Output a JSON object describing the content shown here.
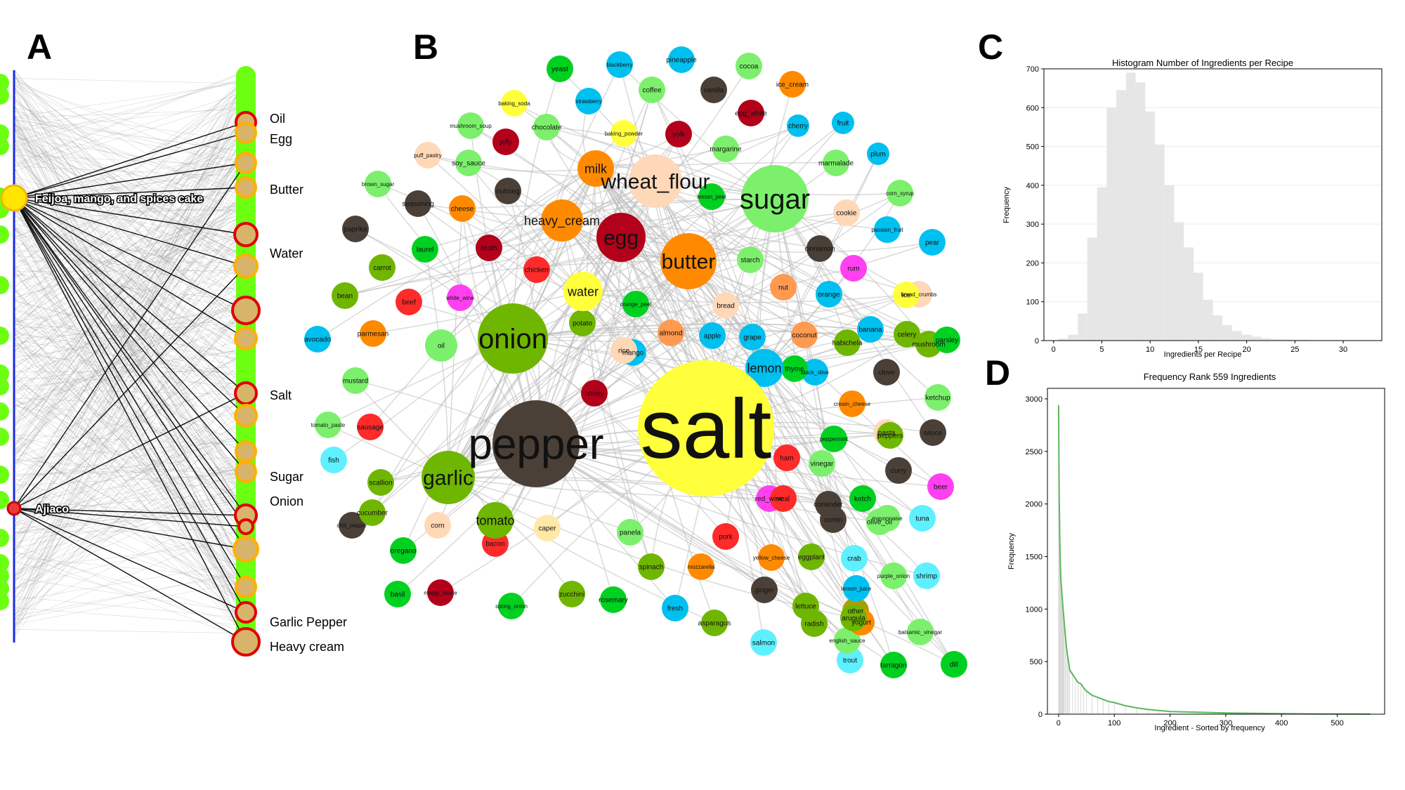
{
  "panels": {
    "a": {
      "letter": "A",
      "recipes": [
        {
          "label": "Feijoa, mango, and spices cake",
          "color": "#ffe600",
          "stroke": "#f2b705"
        },
        {
          "label": "Ajiaco",
          "color": "#e83a3a",
          "stroke": "#cc0000"
        }
      ],
      "ingredients": [
        {
          "label": "Oil"
        },
        {
          "label": "Egg"
        },
        {
          "label": "Butter"
        },
        {
          "label": "Water"
        },
        {
          "label": "Salt"
        },
        {
          "label": "Sugar"
        },
        {
          "label": "Onion"
        },
        {
          "label": "Garlic Pepper"
        },
        {
          "label": "Heavy cream"
        }
      ]
    },
    "b": {
      "letter": "B",
      "nodes": [
        {
          "t": "salt",
          "c": "#ffff3b"
        },
        {
          "t": "pepper",
          "c": "#4a4037"
        },
        {
          "t": "onion",
          "c": "#6fb600"
        },
        {
          "t": "sugar",
          "c": "#7cf06c"
        },
        {
          "t": "garlic",
          "c": "#6fb600"
        },
        {
          "t": "butter",
          "c": "#ff8a00"
        },
        {
          "t": "egg",
          "c": "#b3001b"
        },
        {
          "t": "wheat_flour",
          "c": "#ffd8b8"
        },
        {
          "t": "heavy_cream",
          "c": "#ff8a00"
        },
        {
          "t": "milk",
          "c": "#ff8a00"
        },
        {
          "t": "water",
          "c": "#ffff3b"
        },
        {
          "t": "lemon",
          "c": "#00c0f0"
        },
        {
          "t": "oil",
          "c": "#7cf06c"
        },
        {
          "t": "tomato",
          "c": "#6fb600"
        },
        {
          "t": "yeast",
          "c": "#00d020"
        },
        {
          "t": "blackberry",
          "c": "#00c0f0"
        },
        {
          "t": "pineapple",
          "c": "#00c0f0"
        },
        {
          "t": "cocoa",
          "c": "#7cf06c"
        },
        {
          "t": "ice_cream",
          "c": "#ff8a00"
        },
        {
          "t": "baking_soda",
          "c": "#ffff3b"
        },
        {
          "t": "strawberry",
          "c": "#00c0f0"
        },
        {
          "t": "coffee",
          "c": "#7cf06c"
        },
        {
          "t": "vanilla",
          "c": "#4a4037"
        },
        {
          "t": "egg_white",
          "c": "#b3001b"
        },
        {
          "t": "mushroom_soup",
          "c": "#7cf06c"
        },
        {
          "t": "chocolate",
          "c": "#7cf06c"
        },
        {
          "t": "baking_powder",
          "c": "#ffff3b"
        },
        {
          "t": "yolk",
          "c": "#b3001b"
        },
        {
          "t": "cherry",
          "c": "#00c0f0"
        },
        {
          "t": "puff_pastry",
          "c": "#ffd8b8"
        },
        {
          "t": "jelly",
          "c": "#b3001b"
        },
        {
          "t": "fruit",
          "c": "#00c0f0"
        },
        {
          "t": "plum",
          "c": "#00c0f0"
        },
        {
          "t": "margarine",
          "c": "#7cf06c"
        },
        {
          "t": "soy_sauce",
          "c": "#7cf06c"
        },
        {
          "t": "marmalade",
          "c": "#7cf06c"
        },
        {
          "t": "brown_sugar",
          "c": "#7cf06c"
        },
        {
          "t": "nutmeg",
          "c": "#4a4037"
        },
        {
          "t": "lemon_peel",
          "c": "#00d020"
        },
        {
          "t": "corn_syrup",
          "c": "#7cf06c"
        },
        {
          "t": "seasoning",
          "c": "#4a4037"
        },
        {
          "t": "cheese",
          "c": "#ff8a00"
        },
        {
          "t": "cookie",
          "c": "#ffd8b8"
        },
        {
          "t": "paprika",
          "c": "#4a4037"
        },
        {
          "t": "passion_fruit",
          "c": "#00c0f0"
        },
        {
          "t": "pear",
          "c": "#00c0f0"
        },
        {
          "t": "laurel",
          "c": "#00d020"
        },
        {
          "t": "broth",
          "c": "#b3001b"
        },
        {
          "t": "cinnamon",
          "c": "#4a4037"
        },
        {
          "t": "carrot",
          "c": "#6fb600"
        },
        {
          "t": "chicken",
          "c": "#ff2a2a"
        },
        {
          "t": "starch",
          "c": "#7cf06c"
        },
        {
          "t": "rum",
          "c": "#ff40f0"
        },
        {
          "t": "bean",
          "c": "#6fb600"
        },
        {
          "t": "beef",
          "c": "#ff2a2a"
        },
        {
          "t": "white_wine",
          "c": "#ff40f0"
        },
        {
          "t": "nut",
          "c": "#ff9a50"
        },
        {
          "t": "orange",
          "c": "#00c0f0"
        },
        {
          "t": "ice",
          "c": "#ffff3b"
        },
        {
          "t": "orange_peel",
          "c": "#00d020"
        },
        {
          "t": "bread",
          "c": "#ffd8b8"
        },
        {
          "t": "bread_crumbs",
          "c": "#ffd8b8"
        },
        {
          "t": "banana",
          "c": "#00c0f0"
        },
        {
          "t": "celery",
          "c": "#6fb600"
        },
        {
          "t": "parsley",
          "c": "#00d020"
        },
        {
          "t": "parmesan",
          "c": "#ff8a00"
        },
        {
          "t": "potato",
          "c": "#6fb600"
        },
        {
          "t": "almond",
          "c": "#ff9a50"
        },
        {
          "t": "apple",
          "c": "#00c0f0"
        },
        {
          "t": "grape",
          "c": "#00c0f0"
        },
        {
          "t": "coconut",
          "c": "#ff9a50"
        },
        {
          "t": "habichela",
          "c": "#6fb600"
        },
        {
          "t": "mushroom",
          "c": "#6fb600"
        },
        {
          "t": "rice",
          "c": "#ffd8b8"
        },
        {
          "t": "avocado",
          "c": "#00c0f0"
        },
        {
          "t": "mango",
          "c": "#00c0f0"
        },
        {
          "t": "thyme",
          "c": "#00d020"
        },
        {
          "t": "black_olive",
          "c": "#00c0f0"
        },
        {
          "t": "clove",
          "c": "#4a4037"
        },
        {
          "t": "ketchup",
          "c": "#7cf06c"
        },
        {
          "t": "mustard",
          "c": "#7cf06c"
        },
        {
          "t": "honey",
          "c": "#b3001b"
        },
        {
          "t": "cream_cheese",
          "c": "#ff8a00"
        },
        {
          "t": "peppers",
          "c": "#6fb600"
        },
        {
          "t": "tomato_paste",
          "c": "#7cf06c"
        },
        {
          "t": "sausage",
          "c": "#ff2a2a"
        },
        {
          "t": "peppermint",
          "c": "#00d020"
        },
        {
          "t": "pasta",
          "c": "#ffd8b8"
        },
        {
          "t": "sauce",
          "c": "#4a4037"
        },
        {
          "t": "fish",
          "c": "#5ff0ff"
        },
        {
          "t": "ham",
          "c": "#ff2a2a"
        },
        {
          "t": "curry",
          "c": "#4a4037"
        },
        {
          "t": "scallion",
          "c": "#6fb600"
        },
        {
          "t": "vinegar",
          "c": "#7cf06c"
        },
        {
          "t": "veal",
          "c": "#ff2a2a"
        },
        {
          "t": "beer",
          "c": "#ff40f0"
        },
        {
          "t": "ketch",
          "c": "#00d020"
        },
        {
          "t": "cucumber",
          "c": "#6fb600"
        },
        {
          "t": "red_wine",
          "c": "#ff40f0"
        },
        {
          "t": "coriander",
          "c": "#4a4037"
        },
        {
          "t": "olive_oil",
          "c": "#7cf06c"
        },
        {
          "t": "chili_pepper",
          "c": "#4a4037"
        },
        {
          "t": "corn",
          "c": "#ffd8b8"
        },
        {
          "t": "caper",
          "c": "#ffe8a8"
        },
        {
          "t": "panela",
          "c": "#7cf06c"
        },
        {
          "t": "cumin",
          "c": "#4a4037"
        },
        {
          "t": "mayonnaise",
          "c": "#7cf06c"
        },
        {
          "t": "tuna",
          "c": "#5ff0ff"
        },
        {
          "t": "oregano",
          "c": "#00d020"
        },
        {
          "t": "bacon",
          "c": "#ff2a2a"
        },
        {
          "t": "pork",
          "c": "#ff2a2a"
        },
        {
          "t": "yellow_cheese",
          "c": "#ff8a00"
        },
        {
          "t": "eggplant",
          "c": "#6fb600"
        },
        {
          "t": "crab",
          "c": "#5ff0ff"
        },
        {
          "t": "purple_onion",
          "c": "#7cf06c"
        },
        {
          "t": "spinach",
          "c": "#6fb600"
        },
        {
          "t": "mozzarella",
          "c": "#ff8a00"
        },
        {
          "t": "basil",
          "c": "#00d020"
        },
        {
          "t": "maggi_sauce",
          "c": "#b3001b"
        },
        {
          "t": "ginger",
          "c": "#4a4037"
        },
        {
          "t": "lemon_juice",
          "c": "#00c0f0"
        },
        {
          "t": "shrimp",
          "c": "#5ff0ff"
        },
        {
          "t": "spring_onion",
          "c": "#00d020"
        },
        {
          "t": "zucchini",
          "c": "#6fb600"
        },
        {
          "t": "rosemary",
          "c": "#00d020"
        },
        {
          "t": "fresh",
          "c": "#00c0f0"
        },
        {
          "t": "arugula",
          "c": "#6fb600"
        },
        {
          "t": "lettuce",
          "c": "#6fb600"
        },
        {
          "t": "yogurt",
          "c": "#ff8a00"
        },
        {
          "t": "asparagus",
          "c": "#6fb600"
        },
        {
          "t": "english_sauce",
          "c": "#7cf06c"
        },
        {
          "t": "salmon",
          "c": "#5ff0ff"
        },
        {
          "t": "tarragon",
          "c": "#00d020"
        },
        {
          "t": "balsamic_vinegar",
          "c": "#7cf06c"
        },
        {
          "t": "dill",
          "c": "#00d020"
        },
        {
          "t": "other",
          "c": "#a8a000"
        },
        {
          "t": "radish",
          "c": "#6fb600"
        },
        {
          "t": "trout",
          "c": "#5ff0ff"
        }
      ]
    },
    "c": {
      "letter": "C",
      "chart_data": {
        "type": "bar",
        "title": "Histogram Number of Ingredients per Recipe",
        "xlabel": "Ingredients per Recipe",
        "ylabel": "Frequency",
        "xlim": [
          -1,
          34
        ],
        "ylim": [
          0,
          700
        ],
        "xticks": [
          0,
          5,
          10,
          15,
          20,
          25,
          30
        ],
        "yticks": [
          0,
          100,
          200,
          300,
          400,
          500,
          600,
          700
        ],
        "bin_width": 1,
        "bins": [
          1,
          2,
          3,
          4,
          5,
          6,
          7,
          8,
          9,
          10,
          11,
          12,
          13,
          14,
          15,
          16,
          17,
          18,
          19,
          20,
          21,
          22,
          23,
          24,
          25,
          26,
          27,
          28,
          29,
          30,
          31,
          32,
          33
        ],
        "values": [
          5,
          15,
          70,
          265,
          395,
          600,
          645,
          690,
          665,
          590,
          505,
          400,
          305,
          240,
          175,
          105,
          65,
          40,
          25,
          15,
          10,
          6,
          4,
          3,
          2,
          2,
          1,
          1,
          1,
          0,
          0,
          0,
          1
        ],
        "color": "#e6e6e6",
        "grid": true
      }
    },
    "d": {
      "letter": "D",
      "chart_data": {
        "type": "line",
        "title": "Frequency Rank 559 Ingredients",
        "xlabel": "Ingredient - Sorted by frequency",
        "ylabel": "Frequency",
        "xlim": [
          -20,
          585
        ],
        "ylim": [
          0,
          3100
        ],
        "xticks": [
          0,
          100,
          200,
          300,
          400,
          500
        ],
        "yticks": [
          0,
          500,
          1000,
          1500,
          2000,
          2500,
          3000
        ],
        "x": [
          0,
          1,
          2,
          3,
          4,
          5,
          6,
          7,
          8,
          9,
          10,
          12,
          14,
          16,
          18,
          20,
          25,
          30,
          35,
          40,
          45,
          50,
          60,
          70,
          80,
          90,
          100,
          120,
          140,
          160,
          180,
          200,
          250,
          300,
          350,
          400,
          450,
          500,
          559
        ],
        "y": [
          2940,
          2100,
          1720,
          1480,
          1300,
          1220,
          1140,
          1080,
          1000,
          950,
          880,
          760,
          640,
          560,
          500,
          420,
          380,
          340,
          300,
          290,
          250,
          220,
          180,
          160,
          140,
          120,
          110,
          80,
          60,
          45,
          35,
          25,
          18,
          12,
          8,
          5,
          3,
          2,
          1
        ],
        "color": "#5cb85c",
        "grid": false
      }
    }
  }
}
